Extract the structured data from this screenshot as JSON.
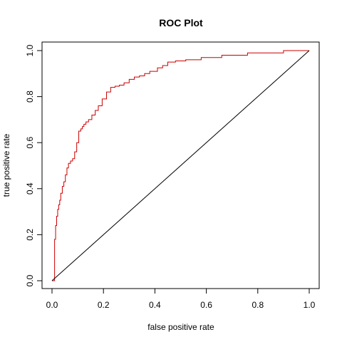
{
  "chart_data": {
    "type": "line",
    "title": "ROC Plot",
    "xlabel": "false positive rate",
    "ylabel": "true positive rate",
    "xlim": [
      0,
      1
    ],
    "ylim": [
      0,
      1
    ],
    "xticks": [
      "0.0",
      "0.2",
      "0.4",
      "0.6",
      "0.8",
      "1.0"
    ],
    "yticks": [
      "0.0",
      "0.2",
      "0.4",
      "0.6",
      "0.8",
      "1.0"
    ],
    "grid": false,
    "legend": "none",
    "series": [
      {
        "role": "roc-curve",
        "color": "#cc0000",
        "x": [
          0.0,
          0.01,
          0.01,
          0.014,
          0.014,
          0.018,
          0.018,
          0.022,
          0.022,
          0.026,
          0.026,
          0.03,
          0.03,
          0.034,
          0.034,
          0.04,
          0.04,
          0.046,
          0.046,
          0.052,
          0.052,
          0.058,
          0.058,
          0.064,
          0.064,
          0.072,
          0.072,
          0.08,
          0.08,
          0.088,
          0.088,
          0.096,
          0.096,
          0.104,
          0.104,
          0.112,
          0.112,
          0.118,
          0.118,
          0.124,
          0.124,
          0.132,
          0.132,
          0.142,
          0.142,
          0.155,
          0.155,
          0.168,
          0.168,
          0.18,
          0.18,
          0.195,
          0.195,
          0.212,
          0.212,
          0.228,
          0.228,
          0.245,
          0.245,
          0.262,
          0.262,
          0.28,
          0.28,
          0.3,
          0.3,
          0.32,
          0.32,
          0.34,
          0.34,
          0.36,
          0.36,
          0.38,
          0.38,
          0.41,
          0.41,
          0.43,
          0.43,
          0.45,
          0.45,
          0.48,
          0.48,
          0.52,
          0.52,
          0.58,
          0.58,
          0.66,
          0.66,
          0.76,
          0.76,
          0.9,
          0.9,
          1.0
        ],
        "y": [
          0.0,
          0.0,
          0.18,
          0.18,
          0.24,
          0.24,
          0.28,
          0.28,
          0.31,
          0.31,
          0.33,
          0.33,
          0.35,
          0.35,
          0.38,
          0.38,
          0.41,
          0.41,
          0.43,
          0.43,
          0.46,
          0.46,
          0.49,
          0.49,
          0.51,
          0.51,
          0.52,
          0.52,
          0.53,
          0.53,
          0.56,
          0.56,
          0.6,
          0.6,
          0.65,
          0.65,
          0.66,
          0.66,
          0.67,
          0.67,
          0.68,
          0.68,
          0.69,
          0.69,
          0.7,
          0.7,
          0.72,
          0.72,
          0.74,
          0.74,
          0.76,
          0.76,
          0.79,
          0.79,
          0.82,
          0.82,
          0.84,
          0.84,
          0.845,
          0.845,
          0.85,
          0.85,
          0.86,
          0.86,
          0.875,
          0.875,
          0.885,
          0.885,
          0.89,
          0.89,
          0.9,
          0.9,
          0.91,
          0.91,
          0.925,
          0.925,
          0.935,
          0.935,
          0.95,
          0.95,
          0.955,
          0.955,
          0.96,
          0.96,
          0.97,
          0.97,
          0.98,
          0.98,
          0.99,
          0.99,
          1.0,
          1.0
        ]
      },
      {
        "role": "diagonal-reference",
        "color": "#000000",
        "x": [
          0,
          1
        ],
        "y": [
          0,
          1
        ]
      }
    ]
  }
}
